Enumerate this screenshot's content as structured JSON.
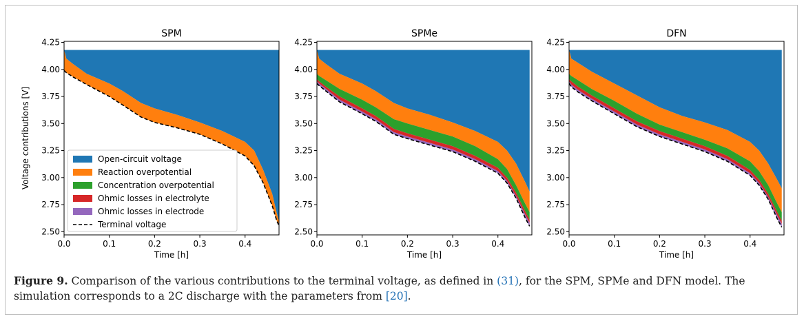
{
  "chart_data": {
    "type": "area",
    "ylabel": "Voltage contributions [V]",
    "xlabel": "Time [h]",
    "xlim": [
      0.0,
      0.475
    ],
    "ylim": [
      2.47,
      4.26
    ],
    "x_ticks": [
      "0.0",
      "0.1",
      "0.2",
      "0.3",
      "0.4"
    ],
    "y_ticks": [
      "4.25",
      "4.00",
      "3.75",
      "3.50",
      "3.25",
      "3.00",
      "2.75",
      "2.50"
    ],
    "ocv_top": 4.18,
    "legend": {
      "placement": "lower-left of first panel",
      "entries": [
        {
          "label": "Open-circuit voltage",
          "color": "#1f77b4",
          "kind": "patch"
        },
        {
          "label": "Reaction overpotential",
          "color": "#ff7f0e",
          "kind": "patch"
        },
        {
          "label": "Concentration overpotential",
          "color": "#2ca02c",
          "kind": "patch"
        },
        {
          "label": "Ohmic losses in electrolyte",
          "color": "#d62728",
          "kind": "patch"
        },
        {
          "label": "Ohmic losses in electrode",
          "color": "#9467bd",
          "kind": "patch"
        },
        {
          "label": "Terminal voltage",
          "color": "#000000",
          "kind": "dashed-line"
        }
      ]
    },
    "colors": {
      "ocv": "#1f77b4",
      "reaction": "#ff7f0e",
      "concentration": "#2ca02c",
      "electrolyte": "#d62728",
      "electrode": "#9467bd",
      "terminal": "#000000"
    },
    "panels": [
      {
        "title": "SPM",
        "x": [
          0.0,
          0.005,
          0.02,
          0.05,
          0.1,
          0.13,
          0.17,
          0.2,
          0.25,
          0.3,
          0.35,
          0.4,
          0.42,
          0.44,
          0.46,
          0.47,
          0.48
        ],
        "boundaries": {
          "ocv_reaction": [
            4.18,
            4.1,
            4.05,
            3.96,
            3.87,
            3.8,
            3.69,
            3.64,
            3.58,
            3.51,
            3.43,
            3.33,
            3.25,
            3.07,
            2.85,
            2.67,
            2.52
          ],
          "reaction_concentration": [
            3.99,
            3.97,
            3.93,
            3.86,
            3.75,
            3.67,
            3.56,
            3.51,
            3.46,
            3.4,
            3.31,
            3.2,
            3.11,
            2.95,
            2.74,
            2.6,
            2.51
          ],
          "concentration_electrolyte": [
            3.99,
            3.97,
            3.93,
            3.86,
            3.75,
            3.67,
            3.56,
            3.51,
            3.46,
            3.4,
            3.31,
            3.2,
            3.11,
            2.95,
            2.74,
            2.6,
            2.51
          ],
          "electrolyte_electrode": [
            3.99,
            3.97,
            3.93,
            3.86,
            3.75,
            3.67,
            3.56,
            3.51,
            3.46,
            3.4,
            3.31,
            3.2,
            3.11,
            2.95,
            2.74,
            2.6,
            2.51
          ],
          "terminal": [
            3.99,
            3.97,
            3.93,
            3.86,
            3.75,
            3.67,
            3.56,
            3.51,
            3.46,
            3.4,
            3.31,
            3.2,
            3.11,
            2.95,
            2.74,
            2.6,
            2.51
          ]
        }
      },
      {
        "title": "SPMe",
        "x": [
          0.0,
          0.005,
          0.02,
          0.05,
          0.1,
          0.13,
          0.17,
          0.2,
          0.25,
          0.3,
          0.35,
          0.4,
          0.42,
          0.44,
          0.46,
          0.47
        ],
        "boundaries": {
          "ocv_reaction": [
            4.18,
            4.1,
            4.05,
            3.96,
            3.87,
            3.8,
            3.69,
            3.64,
            3.58,
            3.51,
            3.43,
            3.33,
            3.25,
            3.13,
            2.96,
            2.87
          ],
          "reaction_concentration": [
            3.96,
            3.94,
            3.9,
            3.82,
            3.72,
            3.65,
            3.54,
            3.5,
            3.44,
            3.38,
            3.29,
            3.17,
            3.08,
            2.93,
            2.76,
            2.68
          ],
          "concentration_electrolyte": [
            3.91,
            3.89,
            3.84,
            3.75,
            3.64,
            3.57,
            3.45,
            3.41,
            3.35,
            3.29,
            3.2,
            3.09,
            3.0,
            2.86,
            2.69,
            2.61
          ],
          "electrolyte_electrode": [
            3.89,
            3.87,
            3.82,
            3.72,
            3.61,
            3.54,
            3.42,
            3.38,
            3.32,
            3.26,
            3.17,
            3.06,
            2.97,
            2.83,
            2.66,
            2.58
          ],
          "terminal": [
            3.87,
            3.85,
            3.8,
            3.7,
            3.59,
            3.52,
            3.4,
            3.36,
            3.3,
            3.24,
            3.15,
            3.04,
            2.95,
            2.81,
            2.63,
            2.55
          ]
        }
      },
      {
        "title": "DFN",
        "x": [
          0.0,
          0.005,
          0.02,
          0.05,
          0.1,
          0.15,
          0.2,
          0.25,
          0.3,
          0.35,
          0.4,
          0.42,
          0.44,
          0.46,
          0.47
        ],
        "boundaries": {
          "ocv_reaction": [
            4.18,
            4.1,
            4.06,
            3.98,
            3.87,
            3.76,
            3.65,
            3.57,
            3.51,
            3.44,
            3.33,
            3.25,
            3.13,
            2.98,
            2.9
          ],
          "reaction_concentration": [
            3.96,
            3.94,
            3.9,
            3.82,
            3.71,
            3.59,
            3.49,
            3.42,
            3.35,
            3.27,
            3.15,
            3.06,
            2.93,
            2.76,
            2.68
          ],
          "concentration_electrolyte": [
            3.91,
            3.89,
            3.84,
            3.76,
            3.64,
            3.52,
            3.43,
            3.36,
            3.29,
            3.2,
            3.07,
            2.98,
            2.85,
            2.68,
            2.6
          ],
          "electrolyte_electrode": [
            3.89,
            3.86,
            3.81,
            3.73,
            3.61,
            3.49,
            3.4,
            3.33,
            3.26,
            3.17,
            3.04,
            2.95,
            2.82,
            2.65,
            2.57
          ],
          "terminal": [
            3.87,
            3.84,
            3.79,
            3.71,
            3.59,
            3.47,
            3.38,
            3.31,
            3.24,
            3.15,
            3.02,
            2.93,
            2.8,
            2.62,
            2.54
          ]
        }
      }
    ]
  },
  "caption": {
    "label": "Figure 9.",
    "text_1": " Comparison of the various contributions to the terminal voltage, as defined in ",
    "eq_ref": "(31)",
    "text_2": ", for the SPM, SPMe and DFN model. The simulation corresponds to a 2C discharge with the parameters from ",
    "cite_ref": "[20]",
    "text_3": "."
  }
}
